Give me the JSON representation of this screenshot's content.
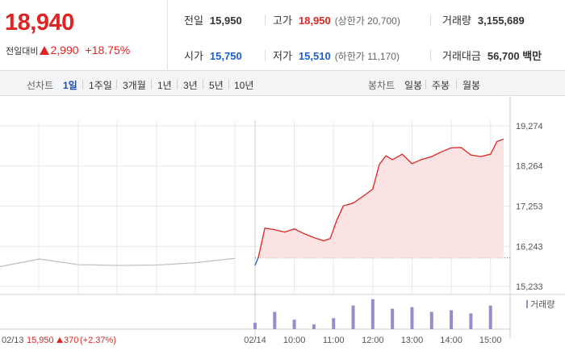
{
  "quote": {
    "current_price": "18,940",
    "change_caption": "전일대비",
    "change_amount": "2,990",
    "change_percent": "+18.75%"
  },
  "stats": {
    "prev_close": {
      "label": "전일",
      "value": "15,950"
    },
    "high": {
      "label": "고가",
      "value": "18,950",
      "sub": "(상한가 20,700)"
    },
    "volume": {
      "label": "거래량",
      "value": "3,155,689"
    },
    "open": {
      "label": "시가",
      "value": "15,750"
    },
    "low": {
      "label": "저가",
      "value": "15,510",
      "sub": "(하한가 11,170)"
    },
    "trade_amount": {
      "label": "거래대금",
      "value": "56,700 백만"
    }
  },
  "line_tabs": {
    "group_label": "선차트",
    "items": [
      "1일",
      "1주일",
      "3개월",
      "1년",
      "3년",
      "5년",
      "10년"
    ],
    "active": "1일"
  },
  "candle_tabs": {
    "group_label": "봉차트",
    "items": [
      "일봉",
      "주봉",
      "월봉"
    ]
  },
  "colors": {
    "up": "#e02424",
    "down": "#1a5fd1",
    "volume": "#9a8ccc",
    "grid": "#e8e8e8"
  },
  "chart_data": {
    "type": "line",
    "price": {
      "y_ticks": [
        15233,
        16243,
        17253,
        18264,
        19274
      ],
      "y_tick_labels": [
        "15,233",
        "16,243",
        "17,253",
        "18,264",
        "19,274"
      ],
      "ylim": [
        15233,
        19274
      ],
      "baseline": 15950,
      "prev_day": {
        "x": [
          "02/13 09:00",
          "02/13 10:00",
          "02/13 11:00",
          "02/13 12:00",
          "02/13 13:00",
          "02/13 14:00",
          "02/13 15:00"
        ],
        "y": [
          15730,
          15920,
          15780,
          15760,
          15770,
          15830,
          15940
        ]
      },
      "today": {
        "x": [
          "09:00",
          "09:05",
          "09:15",
          "09:30",
          "09:45",
          "10:00",
          "10:15",
          "10:30",
          "10:45",
          "10:55",
          "11:05",
          "11:15",
          "11:30",
          "11:45",
          "12:00",
          "12:10",
          "12:20",
          "12:30",
          "12:45",
          "13:00",
          "13:15",
          "13:30",
          "13:45",
          "14:00",
          "14:15",
          "14:30",
          "14:45",
          "15:00",
          "15:10",
          "15:20"
        ],
        "y": [
          15760,
          15960,
          16700,
          16660,
          16600,
          16680,
          16560,
          16460,
          16380,
          16440,
          16900,
          17260,
          17330,
          17500,
          17680,
          18300,
          18520,
          18420,
          18560,
          18320,
          18430,
          18500,
          18620,
          18720,
          18730,
          18540,
          18500,
          18560,
          18880,
          18940
        ]
      }
    },
    "volume": {
      "legend": "거래량",
      "x": [
        "09:00",
        "09:30",
        "10:00",
        "10:30",
        "11:00",
        "11:30",
        "12:00",
        "12:30",
        "13:00",
        "13:30",
        "14:00",
        "14:30",
        "15:00"
      ],
      "values": [
        8,
        22,
        12,
        6,
        14,
        30,
        38,
        26,
        28,
        22,
        24,
        20,
        30
      ]
    },
    "x_tick_labels": [
      "02/14",
      "10:00",
      "11:00",
      "12:00",
      "13:00",
      "14:00",
      "15:00"
    ],
    "prev_day_info": {
      "date": "02/13",
      "close": "15,950",
      "change": "370",
      "percent": "(+2.37%)"
    }
  }
}
